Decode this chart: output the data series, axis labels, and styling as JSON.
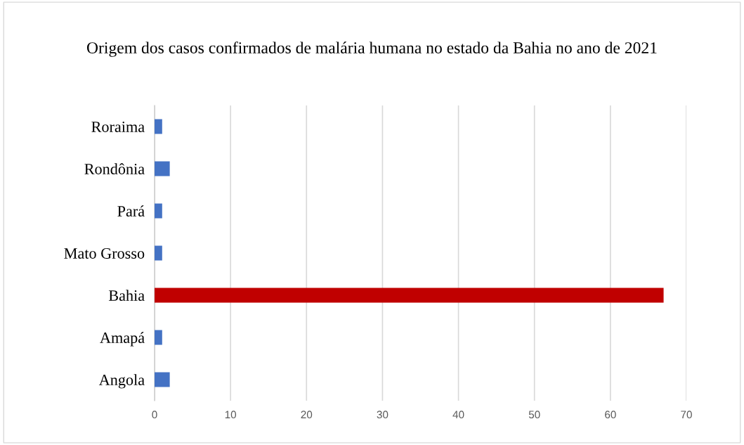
{
  "chart_data": {
    "type": "bar",
    "orientation": "horizontal",
    "title": "Origem dos casos confirmados de malária humana no estado da Bahia no ano de 2021",
    "categories": [
      "Roraima",
      "Rondônia",
      "Pará",
      "Mato Grosso",
      "Bahia",
      "Amapá",
      "Angola"
    ],
    "values": [
      1,
      2,
      1,
      1,
      67,
      1,
      2
    ],
    "colors": [
      "#4472c4",
      "#4472c4",
      "#4472c4",
      "#4472c4",
      "#c00000",
      "#4472c4",
      "#4472c4"
    ],
    "xlim": [
      0,
      70
    ],
    "xticks": [
      0,
      10,
      20,
      30,
      40,
      50,
      60,
      70
    ],
    "grid": "x"
  }
}
